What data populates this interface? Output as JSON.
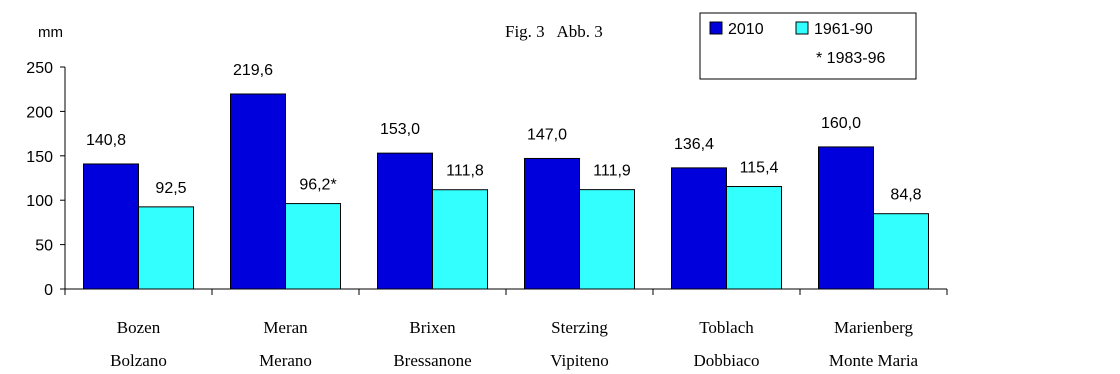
{
  "chart_data": {
    "type": "bar",
    "title": "",
    "figure_label": "Fig. 3   Abb. 3",
    "ylabel": "mm",
    "xlabel": "",
    "ylim": [
      0,
      250
    ],
    "yticks": [
      0,
      50,
      100,
      150,
      200,
      250
    ],
    "ytick_labels": [
      "0",
      "50",
      "100",
      "150",
      "200",
      "250"
    ],
    "grid": false,
    "legend_position": "top-right",
    "legend_note": "* 1983-96",
    "categories": [
      {
        "line1": "Bozen",
        "line2": "Bolzano"
      },
      {
        "line1": "Meran",
        "line2": "Merano"
      },
      {
        "line1": "Brixen",
        "line2": "Bressanone"
      },
      {
        "line1": "Sterzing",
        "line2": "Vipiteno"
      },
      {
        "line1": "Toblach",
        "line2": "Dobbiaco"
      },
      {
        "line1": "Marienberg",
        "line2": "Monte Maria"
      }
    ],
    "series": [
      {
        "name": "2010",
        "color": "#0000dd",
        "values": [
          140.8,
          219.6,
          153.0,
          147.0,
          136.4,
          160.0
        ],
        "labels": [
          "140,8",
          "219,6",
          "153,0",
          "147,0",
          "136,4",
          "160,0"
        ]
      },
      {
        "name": "1961-90",
        "color": "#33ffff",
        "values": [
          92.5,
          96.2,
          111.8,
          111.9,
          115.4,
          84.8
        ],
        "labels": [
          "92,5",
          "96,2*",
          "111,8",
          "111,9",
          "115,4",
          "84,8"
        ]
      }
    ]
  }
}
